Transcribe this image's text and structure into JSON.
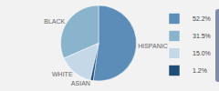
{
  "chart_data": {
    "type": "pie",
    "categories": [
      "HISPANIC",
      "BLACK",
      "WHITE",
      "ASIAN"
    ],
    "values": [
      52.2,
      31.5,
      15.0,
      1.2
    ],
    "value_labels": [
      "52.2%",
      "31.5%",
      "15.0%",
      "1.2%"
    ],
    "colors": [
      "#5b8db8",
      "#8ab4cc",
      "#c5d8e8",
      "#1f4e79"
    ],
    "legend": "right"
  }
}
